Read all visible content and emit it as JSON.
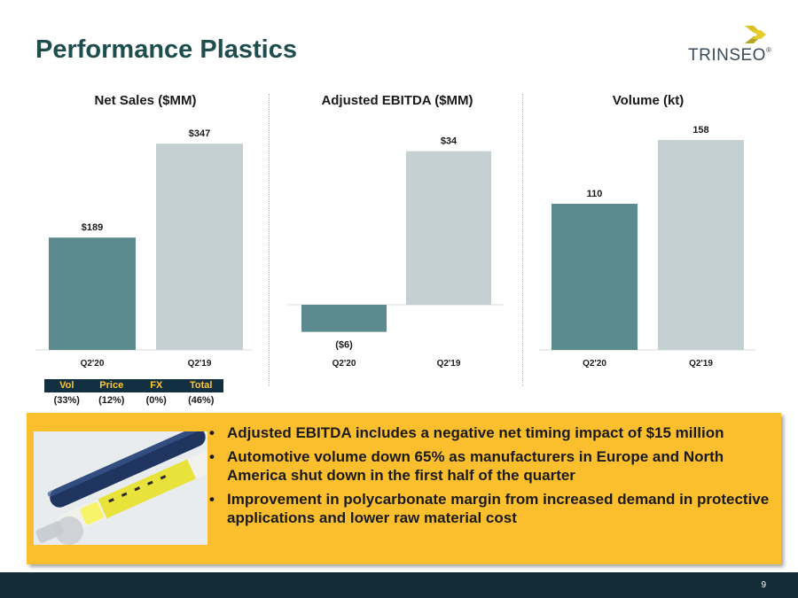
{
  "slide": {
    "title": "Performance Plastics",
    "page_number": "9",
    "logo_text": "TRINSEO",
    "logo_mark": "®"
  },
  "colors": {
    "title": "#1e4d4d",
    "q2_20_bar": "#5b8a8f",
    "q2_19_bar": "#c5d0d2",
    "callout_bg": "#fbbf2e",
    "footer_bg": "#132c35",
    "table_header_bg": "#133042",
    "table_header_text": "#ffc72c"
  },
  "chart_data": [
    {
      "type": "bar",
      "title": "Net Sales ($MM)",
      "categories": [
        "Q2'20",
        "Q2'19"
      ],
      "values": [
        189,
        347
      ],
      "labels": [
        "$189",
        "$347"
      ],
      "ylim": [
        0,
        380
      ]
    },
    {
      "type": "bar",
      "title": "Adjusted EBITDA ($MM)",
      "categories": [
        "Q2'20",
        "Q2'19"
      ],
      "values": [
        -6,
        34
      ],
      "labels": [
        "($6)",
        "$34"
      ],
      "ylim": [
        -10,
        40
      ]
    },
    {
      "type": "bar",
      "title": "Volume (kt)",
      "categories": [
        "Q2'20",
        "Q2'19"
      ],
      "values": [
        110,
        158
      ],
      "labels": [
        "110",
        "158"
      ],
      "ylim": [
        0,
        170
      ]
    }
  ],
  "variance_table": {
    "headers": [
      "Vol",
      "Price",
      "FX",
      "Total"
    ],
    "values": [
      "(33%)",
      "(12%)",
      "(0%)",
      "(46%)"
    ]
  },
  "callout": {
    "photo_icon": "syringe-pens-photo",
    "bullets": [
      "Adjusted EBITDA includes a negative net timing impact of $15 million",
      "Automotive volume down 65% as manufacturers in Europe and North America shut down in the first half of the quarter",
      "Improvement in polycarbonate margin from increased demand in protective applications and lower raw material cost"
    ]
  }
}
